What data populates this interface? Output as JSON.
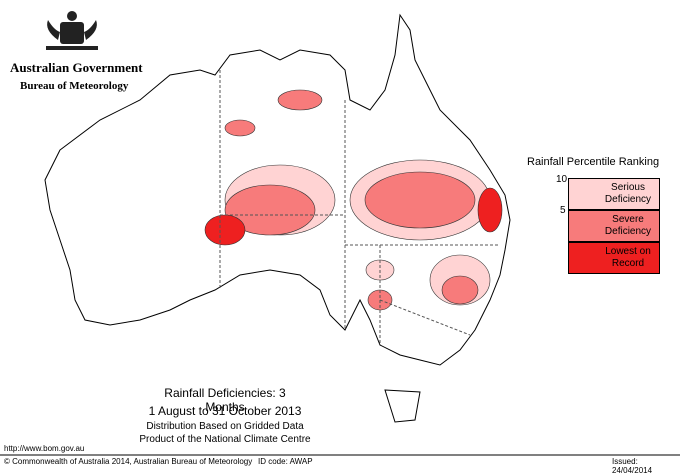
{
  "header": {
    "government": "Australian Government",
    "agency": "Bureau of Meteorology"
  },
  "legend": {
    "title": "Rainfall Percentile Ranking",
    "ticks": [
      10,
      5
    ],
    "classes": [
      {
        "label": "Serious Deficiency",
        "color": "#ffd3d3"
      },
      {
        "label": "Severe Deficiency",
        "color": "#f77b7b"
      },
      {
        "label": "Lowest on Record",
        "color": "#ee2020"
      }
    ]
  },
  "caption": {
    "title": "Rainfall Deficiencies: 3 Months",
    "period": "1 August to 31 October 2013",
    "line1": "Distribution Based on Gridded Data",
    "line2": "Product of the National Climate Centre"
  },
  "footer": {
    "url": "http://www.bom.gov.au",
    "copyright": "© Commonwealth of Australia 2014, Australian Bureau of Meteorology",
    "id": "ID code: AWAP",
    "issued": "Issued: 24/04/2014"
  }
}
